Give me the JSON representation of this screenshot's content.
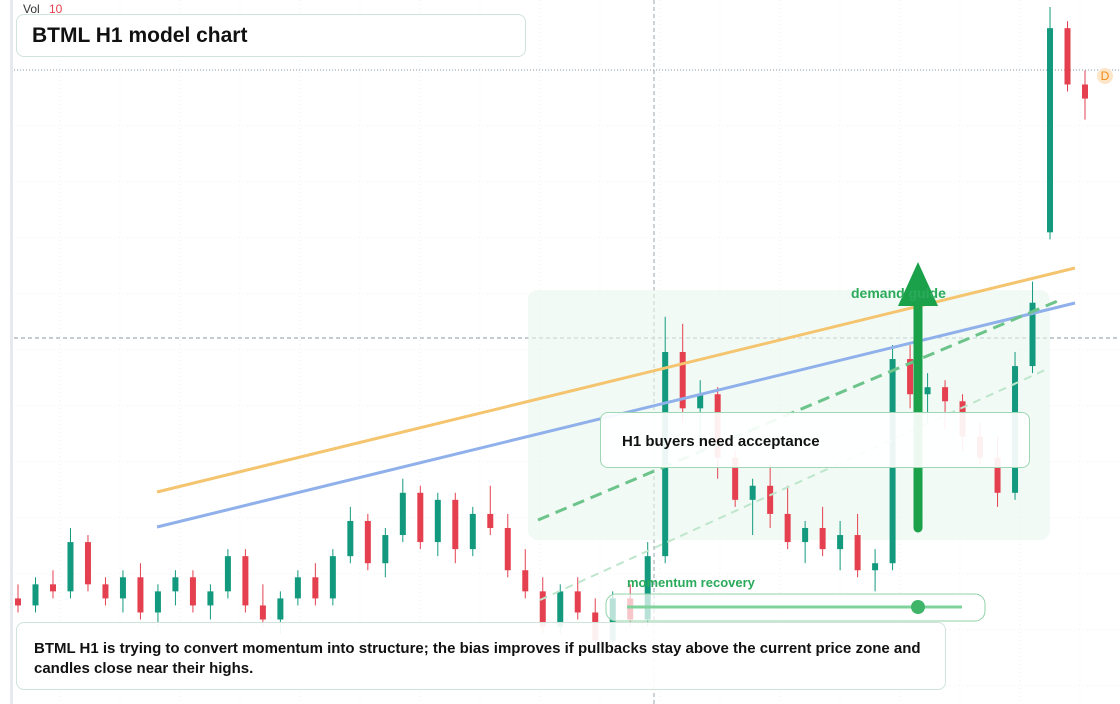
{
  "chart_data": {
    "type": "candlestick",
    "title": "BTML H1 model chart",
    "volume_label": "Vol",
    "volume": 10,
    "up_color": "#139a7e",
    "down_color": "#e5404f",
    "ylim": [
      0,
      100
    ],
    "open": [
      15,
      14,
      17,
      16,
      23,
      17,
      15,
      18,
      13,
      16,
      18,
      14,
      16,
      21,
      14,
      12,
      15,
      18,
      15,
      21,
      26,
      20,
      24,
      30,
      23,
      29,
      22,
      27,
      25,
      19,
      16,
      11,
      16,
      13,
      9,
      15,
      12,
      21,
      50,
      42,
      44,
      35,
      29,
      31,
      27,
      23,
      25,
      22,
      24,
      19,
      20,
      49,
      44,
      45,
      43,
      38,
      35,
      30,
      48,
      67,
      96,
      88
    ],
    "high": [
      17,
      18,
      19,
      25,
      24,
      18,
      19,
      20,
      17,
      19,
      19,
      17,
      22,
      22,
      17,
      16,
      19,
      20,
      22,
      28,
      27,
      25,
      32,
      31,
      30,
      30,
      28,
      31,
      27,
      22,
      18,
      17,
      18,
      15,
      16,
      17,
      23,
      55,
      54,
      46,
      45,
      36,
      32,
      34,
      31,
      26,
      28,
      26,
      27,
      22,
      51,
      51,
      47,
      46,
      44,
      40,
      38,
      50,
      60,
      99,
      97,
      90
    ],
    "low": [
      13,
      13,
      15,
      15,
      16,
      14,
      13,
      12,
      11,
      14,
      13,
      12,
      15,
      13,
      11,
      10,
      14,
      14,
      14,
      20,
      19,
      18,
      23,
      22,
      21,
      20,
      21,
      24,
      18,
      15,
      10,
      10,
      12,
      8,
      8,
      11,
      11,
      20,
      40,
      36,
      32,
      28,
      24,
      25,
      22,
      20,
      21,
      19,
      18,
      16,
      19,
      42,
      40,
      39,
      36,
      34,
      28,
      29,
      47,
      66,
      87,
      83
    ],
    "close": [
      14,
      17,
      16,
      23,
      17,
      15,
      18,
      13,
      16,
      18,
      14,
      16,
      21,
      14,
      12,
      15,
      18,
      15,
      21,
      26,
      20,
      24,
      30,
      23,
      29,
      22,
      27,
      25,
      19,
      16,
      11,
      16,
      13,
      9,
      15,
      12,
      21,
      50,
      42,
      44,
      35,
      29,
      31,
      27,
      23,
      25,
      22,
      24,
      19,
      20,
      49,
      44,
      45,
      43,
      38,
      35,
      30,
      48,
      57,
      96,
      88,
      86
    ],
    "annotations": [
      "demand guide",
      "H1 buyers need acceptance",
      "momentum recovery"
    ],
    "marker": "D",
    "summary": "BTML H1 is trying to convert momentum into structure; the bias improves if pullbacks stay above the current price zone and candles close near their highs."
  }
}
